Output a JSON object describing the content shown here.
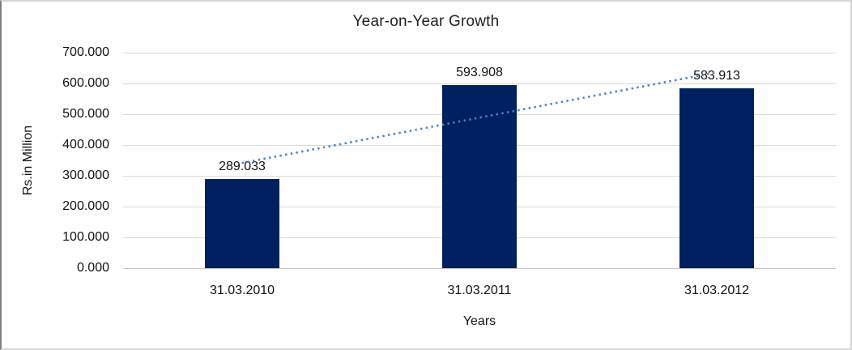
{
  "chart_data": {
    "type": "bar",
    "title": "Year-on-Year Growth",
    "xlabel": "Years",
    "ylabel": "Rs.in Million",
    "categories": [
      "31.03.2010",
      "31.03.2011",
      "31.03.2012"
    ],
    "values": [
      289.033,
      593.908,
      583.913
    ],
    "data_labels": [
      "289.033",
      "593.908",
      "583.913"
    ],
    "y_ticks": [
      "700.000",
      "600.000",
      "500.000",
      "400.000",
      "300.000",
      "200.000",
      "100.000",
      "0.000"
    ],
    "ylim": [
      0,
      700
    ],
    "grid": true,
    "legend": "none",
    "trendline": {
      "type": "linear",
      "style": "dotted"
    },
    "colors": {
      "bar": "#002060",
      "trendline": "#4f81bd",
      "gridline": "#d9d9d9",
      "axis_line": "#c6c6c6",
      "text": "#111111"
    }
  }
}
